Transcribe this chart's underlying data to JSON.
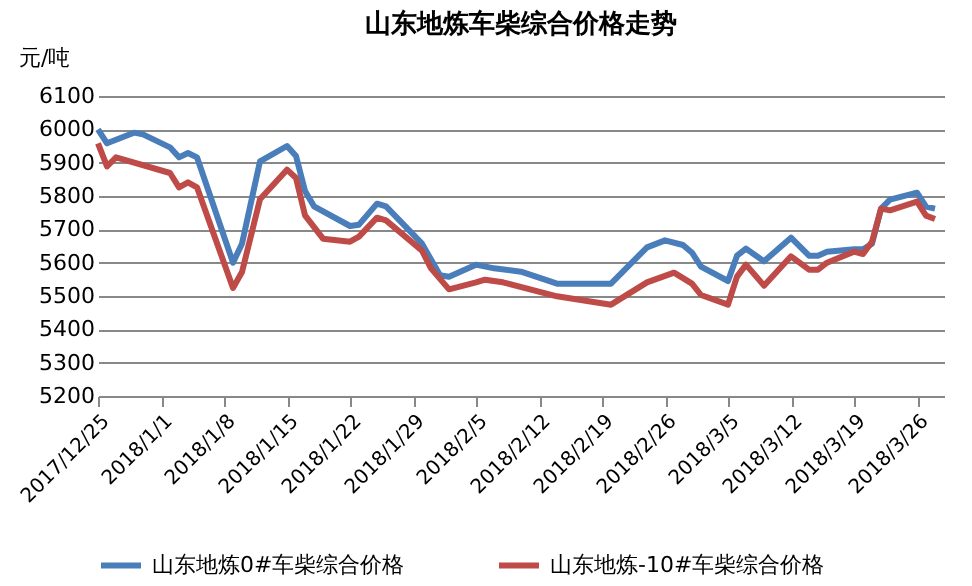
{
  "chart_data": {
    "type": "line",
    "title": "山东地炼车柴综合价格走势",
    "ylabel": "元/吨",
    "xlim": [
      "2017-12-25",
      "2018-03-29"
    ],
    "xticks": [
      {
        "value": "2017-12-25",
        "label": "2017/12/25"
      },
      {
        "value": "2018-01-01",
        "label": "2018/1/1"
      },
      {
        "value": "2018-01-08",
        "label": "2018/1/8"
      },
      {
        "value": "2018-01-15",
        "label": "2018/1/15"
      },
      {
        "value": "2018-01-22",
        "label": "2018/1/22"
      },
      {
        "value": "2018-01-29",
        "label": "2018/1/29"
      },
      {
        "value": "2018-02-05",
        "label": "2018/2/5"
      },
      {
        "value": "2018-02-12",
        "label": "2018/2/12"
      },
      {
        "value": "2018-02-19",
        "label": "2018/2/19"
      },
      {
        "value": "2018-02-26",
        "label": "2018/2/26"
      },
      {
        "value": "2018-03-05",
        "label": "2018/3/5"
      },
      {
        "value": "2018-03-12",
        "label": "2018/3/12"
      },
      {
        "value": "2018-03-19",
        "label": "2018/3/19"
      },
      {
        "value": "2018-03-26",
        "label": "2018/3/26"
      }
    ],
    "ylim": [
      5200,
      6100
    ],
    "yticks": [
      5200,
      5300,
      5400,
      5500,
      5600,
      5700,
      5800,
      5900,
      6000,
      6100
    ],
    "grid": "y",
    "legend": "bottom",
    "marker": "none",
    "line_style": "solid",
    "series": [
      {
        "name": "山东地炼0#车柴综合价格",
        "color": "#4a7ebb",
        "x": [
          "2017-12-25",
          "2017-12-26",
          "2017-12-29",
          "2017-12-30",
          "2018-01-02",
          "2018-01-03",
          "2018-01-04",
          "2018-01-05",
          "2018-01-09",
          "2018-01-10",
          "2018-01-12",
          "2018-01-15",
          "2018-01-16",
          "2018-01-17",
          "2018-01-18",
          "2018-01-22",
          "2018-01-23",
          "2018-01-25",
          "2018-01-26",
          "2018-01-30",
          "2018-02-01",
          "2018-02-02",
          "2018-02-05",
          "2018-02-07",
          "2018-02-10",
          "2018-02-14",
          "2018-02-20",
          "2018-02-24",
          "2018-02-26",
          "2018-02-28",
          "2018-03-01",
          "2018-03-02",
          "2018-03-05",
          "2018-03-06",
          "2018-03-07",
          "2018-03-09",
          "2018-03-12",
          "2018-03-14",
          "2018-03-15",
          "2018-03-16",
          "2018-03-19",
          "2018-03-20",
          "2018-03-21",
          "2018-03-22",
          "2018-03-23",
          "2018-03-26",
          "2018-03-27",
          "2018-03-28"
        ],
        "values": [
          6000,
          5958,
          5990,
          5985,
          5946,
          5916,
          5929,
          5916,
          5600,
          5657,
          5904,
          5950,
          5920,
          5815,
          5769,
          5710,
          5714,
          5777,
          5769,
          5657,
          5562,
          5558,
          5594,
          5583,
          5573,
          5537,
          5537,
          5646,
          5667,
          5653,
          5630,
          5588,
          5545,
          5621,
          5642,
          5604,
          5675,
          5621,
          5621,
          5633,
          5640,
          5640,
          5657,
          5762,
          5789,
          5810,
          5768,
          5762
        ]
      },
      {
        "name": "山东地炼-10#车柴综合价格",
        "color": "#be4b48",
        "x": [
          "2017-12-25",
          "2017-12-26",
          "2017-12-27",
          "2018-01-02",
          "2018-01-03",
          "2018-01-04",
          "2018-01-05",
          "2018-01-09",
          "2018-01-10",
          "2018-01-12",
          "2018-01-15",
          "2018-01-16",
          "2018-01-17",
          "2018-01-19",
          "2018-01-22",
          "2018-01-23",
          "2018-01-25",
          "2018-01-26",
          "2018-01-30",
          "2018-01-31",
          "2018-02-02",
          "2018-02-05",
          "2018-02-06",
          "2018-02-08",
          "2018-02-14",
          "2018-02-20",
          "2018-02-24",
          "2018-02-27",
          "2018-03-01",
          "2018-03-02",
          "2018-03-05",
          "2018-03-06",
          "2018-03-07",
          "2018-03-09",
          "2018-03-12",
          "2018-03-14",
          "2018-03-15",
          "2018-03-16",
          "2018-03-19",
          "2018-03-20",
          "2018-03-21",
          "2018-03-22",
          "2018-03-23",
          "2018-03-26",
          "2018-03-27",
          "2018-03-28"
        ],
        "values": [
          5958,
          5889,
          5916,
          5869,
          5826,
          5841,
          5826,
          5524,
          5572,
          5790,
          5879,
          5854,
          5742,
          5672,
          5663,
          5678,
          5735,
          5727,
          5636,
          5583,
          5520,
          5541,
          5549,
          5541,
          5499,
          5474,
          5541,
          5570,
          5537,
          5503,
          5474,
          5558,
          5594,
          5531,
          5619,
          5579,
          5579,
          5600,
          5633,
          5626,
          5663,
          5762,
          5757,
          5783,
          5741,
          5731
        ]
      }
    ]
  }
}
